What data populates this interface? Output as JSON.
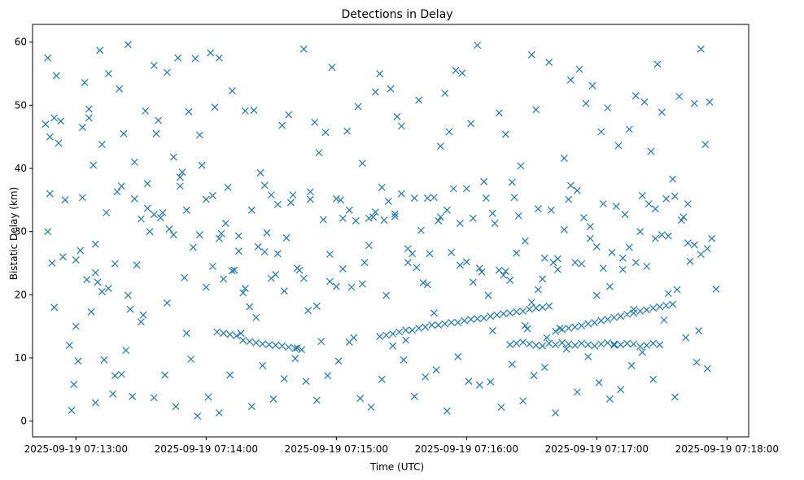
{
  "chart_data": {
    "type": "scatter",
    "title": "Detections in Delay",
    "xlabel": "Time (UTC)",
    "ylabel": "Bistatic Delay (km)",
    "x_ticks": [
      "2025-09-19 07:13:00",
      "2025-09-19 07:14:00",
      "2025-09-19 07:15:00",
      "2025-09-19 07:16:00",
      "2025-09-19 07:17:00",
      "2025-09-19 07:18:00"
    ],
    "y_ticks": [
      "0",
      "10",
      "20",
      "30",
      "40",
      "50",
      "60"
    ],
    "xlim_seconds_after_0713": [
      -20,
      310
    ],
    "ylim": [
      -2.5,
      62.8
    ],
    "marker": "x",
    "color": "#1f77b4",
    "grid": false,
    "series": [
      {
        "name": "",
        "x_seconds_after_0713": [
          -14,
          -13,
          -12,
          -11,
          -10,
          -9,
          -8,
          -5,
          -3,
          0,
          2,
          4,
          6,
          8,
          9,
          10,
          11,
          12,
          15,
          18,
          20,
          22,
          24,
          25,
          27,
          30,
          32,
          34,
          36,
          38,
          40,
          42,
          45,
          47,
          48,
          50,
          52,
          55,
          57,
          60,
          62,
          64,
          66,
          68,
          70,
          72,
          75,
          78,
          80,
          82,
          85,
          88,
          90,
          92,
          95,
          98,
          100,
          102,
          105,
          108,
          110,
          112,
          115,
          118,
          120,
          122,
          125,
          128,
          130,
          132,
          135,
          138,
          140,
          142,
          145,
          148,
          150,
          152,
          155,
          158,
          160,
          162,
          165,
          168,
          170,
          172,
          175,
          178,
          180,
          182,
          185,
          188,
          190,
          192,
          195,
          198,
          200,
          202,
          205,
          208,
          210,
          212,
          215,
          218,
          220,
          222,
          225,
          228,
          230,
          232,
          235,
          238,
          240,
          242,
          245,
          248,
          250,
          252,
          255,
          258,
          260,
          262,
          265,
          268,
          270,
          272,
          275,
          278,
          280,
          282,
          285,
          288,
          290,
          292,
          295,
          -13,
          -10,
          -6,
          -2,
          1,
          5,
          9,
          13,
          17,
          21,
          26,
          31,
          36,
          41,
          46,
          51,
          56,
          61,
          66,
          71,
          76,
          81,
          86,
          91,
          96,
          101,
          106,
          111,
          116,
          121,
          126,
          131,
          136,
          141,
          146,
          151,
          156,
          161,
          166,
          171,
          176,
          181,
          186,
          191,
          196,
          201,
          206,
          211,
          216,
          221,
          226,
          231,
          236,
          241,
          246,
          251,
          256,
          261,
          266,
          271,
          276,
          281,
          286,
          291,
          -12,
          -7,
          -1,
          3,
          7,
          14,
          19,
          23,
          28,
          33,
          37,
          43,
          49,
          53,
          58,
          63,
          67,
          73,
          77,
          83,
          87,
          93,
          97,
          103,
          107,
          113,
          117,
          123,
          127,
          133,
          137,
          143,
          147,
          153,
          157,
          163,
          167,
          173,
          177,
          183,
          187,
          193,
          197,
          203,
          207,
          213,
          217,
          223,
          227,
          233,
          237,
          243,
          247,
          253,
          257,
          263,
          267,
          273,
          277,
          283,
          287,
          293,
          0,
          3,
          6,
          9,
          12,
          15,
          18,
          21,
          24,
          27,
          30,
          33,
          36,
          39,
          42,
          45,
          48,
          51,
          54,
          57,
          60,
          63,
          66,
          69,
          72,
          75,
          78,
          81,
          84,
          87,
          90,
          93,
          96,
          99,
          102,
          105,
          108,
          111,
          114,
          117,
          120,
          123,
          126,
          129,
          132,
          135,
          138,
          141,
          144,
          147,
          150,
          153,
          156,
          159,
          162,
          165,
          168,
          171,
          174,
          177,
          180,
          183,
          186,
          189,
          192,
          195,
          198,
          201,
          204,
          207,
          210,
          213,
          216,
          219,
          222,
          225,
          228,
          231,
          234,
          237,
          240,
          243,
          246,
          249,
          252,
          255,
          258,
          261,
          264,
          267,
          270,
          273,
          276,
          279,
          282,
          285,
          288,
          291,
          140,
          143,
          146,
          149,
          152,
          155,
          158,
          161,
          164,
          167,
          170,
          173,
          176,
          179,
          182,
          185,
          188,
          191,
          194,
          197,
          200,
          203,
          206,
          209,
          212,
          215,
          218,
          221,
          224,
          227,
          230,
          233,
          236,
          239,
          242,
          245,
          248,
          251,
          254,
          257,
          260,
          263,
          266,
          269,
          272,
          275,
          65,
          68,
          71,
          74,
          77,
          80,
          83,
          86,
          89,
          92,
          95,
          98,
          101,
          104,
          200,
          203,
          206,
          209,
          212,
          215,
          218,
          221,
          224,
          227,
          230,
          233,
          236,
          239,
          242,
          245,
          248,
          251,
          254,
          257,
          260,
          263,
          266,
          269
        ],
        "y": [
          47,
          57.5,
          36,
          25,
          18,
          54.7,
          44,
          35,
          12,
          15,
          27,
          53.6,
          49.4,
          40.5,
          28,
          22,
          58.7,
          43.8,
          55,
          24.9,
          52.6,
          45.5,
          59.6,
          17.7,
          41,
          32,
          49.1,
          30,
          56.3,
          47.6,
          33,
          55.2,
          41.8,
          57.5,
          38.6,
          22.7,
          49,
          57.4,
          45.3,
          35.1,
          58.3,
          49.7,
          57.5,
          22.5,
          37,
          52.3,
          26.9,
          49.1,
          18.1,
          49.2,
          39.3,
          29.8,
          22.6,
          23.2,
          46.8,
          48.5,
          35.8,
          11.6,
          58.9,
          35.1,
          47.3,
          42.5,
          45.7,
          56,
          21.3,
          35,
          45.9,
          13.2,
          49.8,
          40.8,
          32.1,
          52.1,
          55,
          31.8,
          52.6,
          48.2,
          46.7,
          12.8,
          26.5,
          50.8,
          21.9,
          35.3,
          17.1,
          43.5,
          51.9,
          45.8,
          55.5,
          55.1,
          36.8,
          47.1,
          59.5,
          37.9,
          19.9,
          14.3,
          48.8,
          45.4,
          22.3,
          35.4,
          40.4,
          14.6,
          58,
          49.3,
          22.5,
          56.8,
          25.1,
          25.7,
          41.6,
          54,
          25.1,
          55.7,
          50.3,
          53.1,
          19.9,
          45.8,
          49.6,
          12.2,
          43.6,
          25.8,
          46.2,
          51.5,
          30,
          50.5,
          42.7,
          56.5,
          48.9,
          35.2,
          38.3,
          51.4,
          32.3,
          34.4,
          50.3,
          58.9,
          43.8,
          50.5,
          20.9,
          30,
          48,
          26,
          1.7,
          9.5,
          22.4,
          2.9,
          9.7,
          4.3,
          7.4,
          3.9,
          16.8,
          3.7,
          7.3,
          2.3,
          13.9,
          0.8,
          3.8,
          1.3,
          7.3,
          13.9,
          2.3,
          8.8,
          3.5,
          6.7,
          9.9,
          6.3,
          3.3,
          7.2,
          9.5,
          12.5,
          3.6,
          2.2,
          6.6,
          11.9,
          9.7,
          3.9,
          7,
          8.1,
          1.6,
          10.2,
          6.3,
          5.7,
          6.2,
          2.2,
          9,
          3.2,
          7.2,
          8.5,
          1.3,
          11.4,
          4.6,
          10.2,
          6.1,
          3.5,
          5,
          8.8,
          10.9,
          6.6,
          16,
          3.8,
          13.2,
          9.3,
          8.3,
          45,
          47.5,
          5.8,
          46.5,
          17.3,
          33,
          36.3,
          11.2,
          24.7,
          33.7,
          45.5,
          30.4,
          39.4,
          9.8,
          40.5,
          24.5,
          29.7,
          23.9,
          20.3,
          16.4,
          26.8,
          26.5,
          29,
          23.9,
          17.5,
          12.6,
          22.1,
          32.1,
          21.2,
          25.1,
          32.3,
          19.9,
          32.4,
          27.3,
          24.3,
          26.5,
          31.7,
          26.7,
          24.7,
          32.1,
          23.6,
          31.3,
          23.1,
          26.6,
          15.1,
          20.8,
          13.2,
          14.7,
          35.1,
          24.9,
          28.9,
          24.2,
          26.7,
          32.7,
          17.7,
          24.5,
          33.6,
          29.3,
          20.8,
          25.3,
          14.3,
          28.9,
          25.5,
          35.4,
          48,
          23.5,
          20.5,
          21,
          7.2,
          37.2,
          19.9,
          35.2,
          15.7,
          37.6,
          32.7,
          32.2,
          18.7,
          29.5,
          37.2,
          33.4,
          27.5,
          29.5,
          21.2,
          35.7,
          28.9,
          31.3,
          23.8,
          29.3,
          21,
          33.4,
          27.6,
          37.3,
          35.8,
          34.3,
          20.6,
          34.6,
          24.2,
          22.6,
          36.3,
          18.2,
          31.9,
          26.4,
          35.2,
          24.1,
          33.4,
          31.7,
          21.7,
          27.8,
          33.1,
          37,
          34.8,
          32.8,
          36,
          25.1,
          35.3,
          30.2,
          21.6,
          35.4,
          32.3,
          33.4,
          36.8,
          31.3,
          25.2,
          22,
          24.2,
          35.3,
          32.9,
          23.9,
          23.7,
          37.8,
          32.5,
          28.5,
          18.8,
          33.6,
          25.8,
          33.4,
          24,
          30.3,
          37.3,
          36.5,
          32.2,
          30.8,
          27.6,
          34.4,
          21.3,
          34,
          24,
          27.5,
          25.1,
          35.7,
          34.4,
          28.9,
          29.5,
          20.2,
          35.6,
          31.8,
          28.2,
          27.9,
          26.4,
          27.3,
          13.4,
          13.6,
          13.8,
          14.1,
          14.4,
          14.4,
          14.7,
          14.9,
          15.2,
          15.2,
          15.4,
          15.6,
          15.6,
          15.9,
          16.1,
          16.2,
          16.3,
          16.6,
          16.8,
          17,
          17.1,
          17.3,
          17.4,
          17.7,
          17.9,
          18,
          18.2,
          14.2,
          14.5,
          14.7,
          14.9,
          15.1,
          15.4,
          15.6,
          15.9,
          16.1,
          16.4,
          16.6,
          16.9,
          17.1,
          17.4,
          17.6,
          17.9,
          18.1,
          18.3,
          18.5,
          14.1,
          13.9,
          13.7,
          13.5,
          12.8,
          12.6,
          12.4,
          12.2,
          12.1,
          12,
          11.9,
          11.7,
          11.5,
          11.3,
          12.1,
          12.3,
          12.5,
          12.2,
          12,
          11.9,
          12.3,
          12.1,
          12.4,
          12.2,
          12,
          12.3,
          12.1,
          11.9,
          12.2,
          12.4,
          12,
          12.1,
          12.3,
          12.2,
          11.8,
          12,
          12.3,
          12.1
        ]
      }
    ]
  }
}
